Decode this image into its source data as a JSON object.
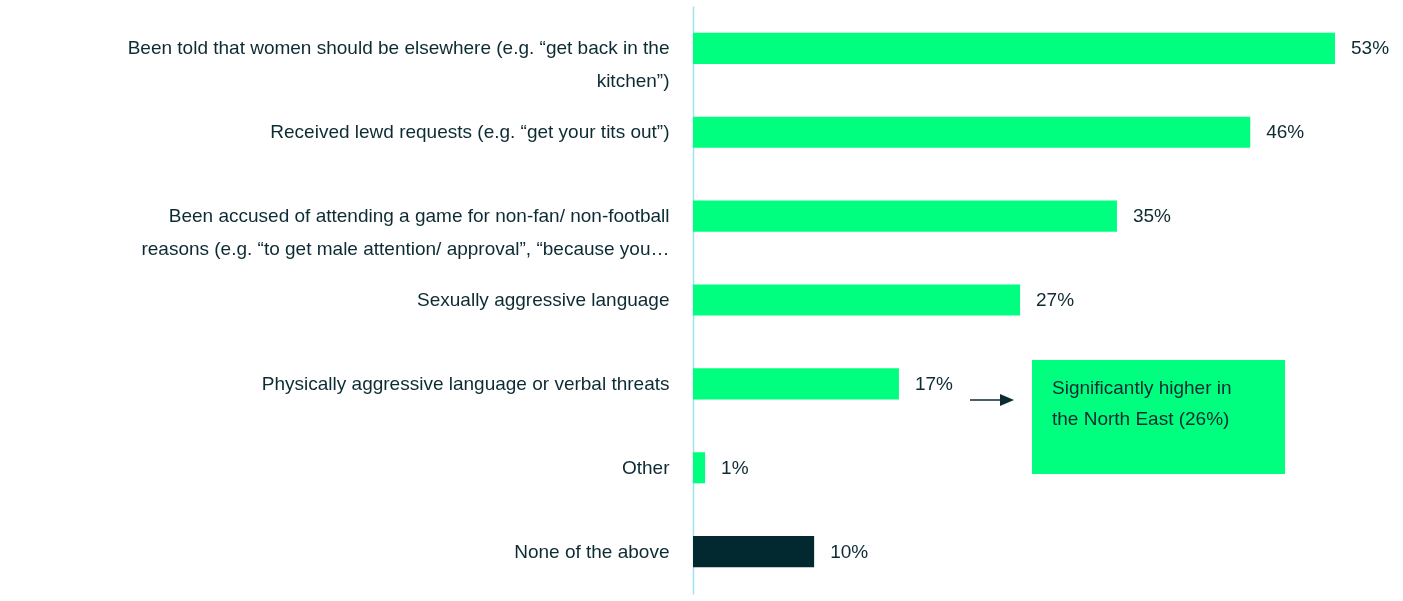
{
  "chart_data": {
    "type": "bar",
    "orientation": "horizontal",
    "categories": [
      "Been told that women should be elsewhere (e.g. “get back in the kitchen”)",
      "Received lewd requests (e.g. “get your tits out”)",
      "Been accused of attending a game for non-fan/ non-football reasons (e.g. “to get male attention/ approval”, “because you…",
      "Sexually aggressive language",
      "Physically aggressive language or verbal threats",
      "Other",
      "None of the above"
    ],
    "values": [
      53,
      46,
      35,
      27,
      17,
      1,
      10
    ],
    "value_labels": [
      "53%",
      "46%",
      "35%",
      "27%",
      "17%",
      "1%",
      "10%"
    ],
    "colors": [
      "#00ff7f",
      "#00ff7f",
      "#00ff7f",
      "#00ff7f",
      "#00ff7f",
      "#00ff7f",
      "#022830"
    ],
    "annotations": [
      "Significantly higher in the North East (26%)"
    ]
  }
}
